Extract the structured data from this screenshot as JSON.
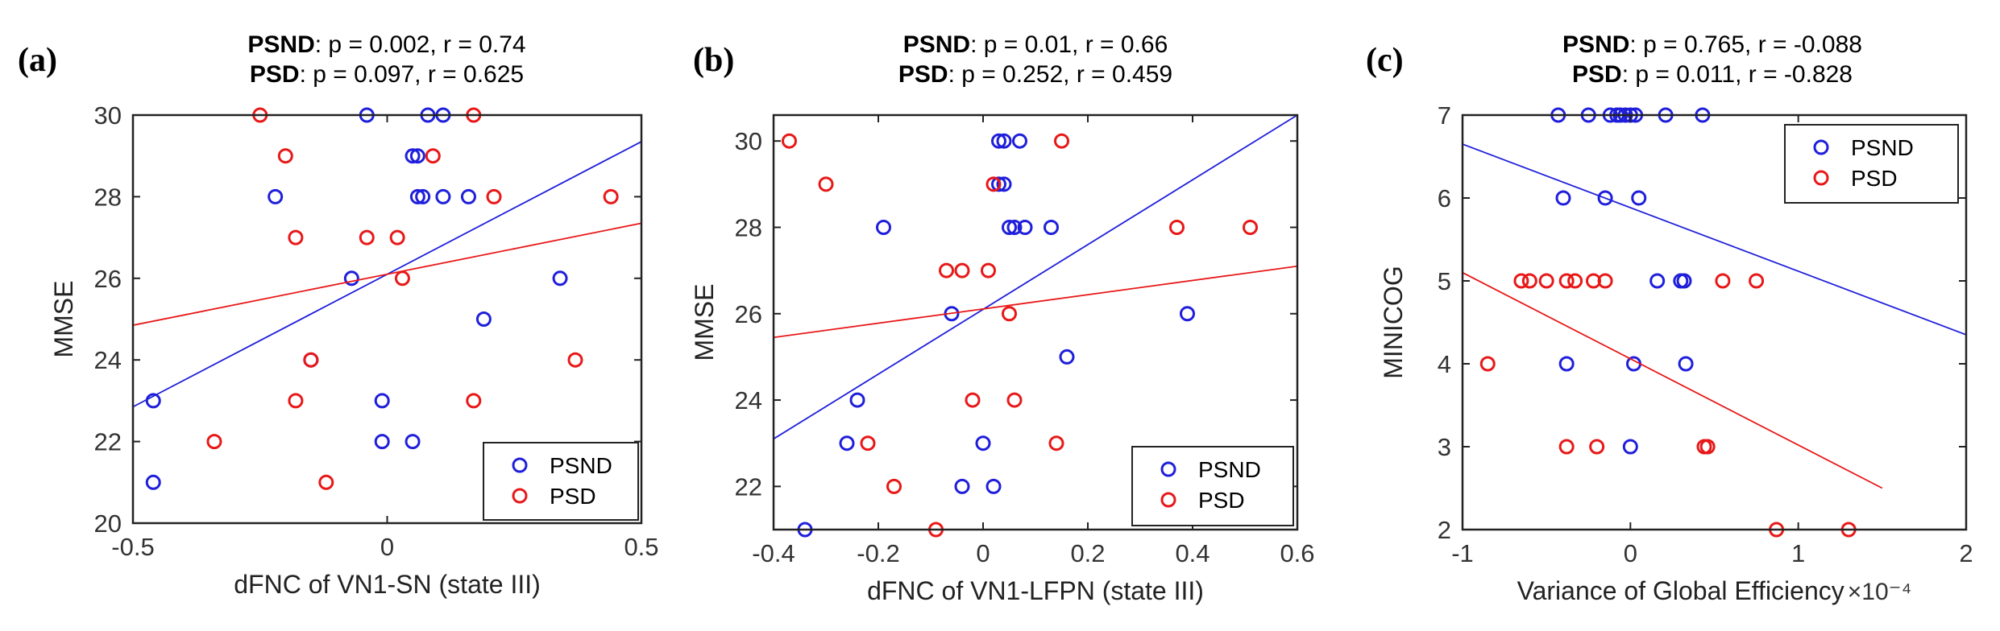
{
  "chart_data": [
    {
      "type": "scatter",
      "panel_label": "(a)",
      "stats": [
        {
          "group": "PSND",
          "text": ": p = 0.002, r = 0.74"
        },
        {
          "group": "PSD",
          "text": ": p = 0.097, r = 0.625"
        }
      ],
      "xlabel": "dFNC of VN1-SN (state III)",
      "ylabel": "MMSE",
      "xlim": [
        -0.5,
        0.5
      ],
      "ylim": [
        20,
        30
      ],
      "xticks": [
        -0.5,
        0,
        0.5
      ],
      "xtick_labels": [
        "-0.5",
        "0",
        "0.5"
      ],
      "yticks": [
        20,
        22,
        24,
        26,
        28,
        30
      ],
      "ytick_labels": [
        "20",
        "22",
        "24",
        "26",
        "28",
        "30"
      ],
      "exponent_label": "",
      "legend": {
        "position": "bottom-right",
        "entries": [
          "PSND",
          "PSD"
        ]
      },
      "series": [
        {
          "name": "PSND",
          "color": "#1f1fdb",
          "points": [
            [
              -0.46,
              23
            ],
            [
              -0.46,
              21
            ],
            [
              -0.22,
              28
            ],
            [
              -0.07,
              26
            ],
            [
              -0.04,
              30
            ],
            [
              0.08,
              30
            ],
            [
              0.11,
              30
            ],
            [
              0.05,
              29
            ],
            [
              0.06,
              29
            ],
            [
              0.06,
              28
            ],
            [
              0.07,
              28
            ],
            [
              0.11,
              28
            ],
            [
              0.16,
              28
            ],
            [
              0.19,
              25
            ],
            [
              0.34,
              26
            ],
            [
              -0.15,
              24
            ],
            [
              -0.01,
              23
            ],
            [
              -0.01,
              22
            ],
            [
              0.05,
              22
            ]
          ],
          "fit": [
            [
              -0.5,
              22.85
            ],
            [
              0.5,
              29.35
            ]
          ]
        },
        {
          "name": "PSD",
          "color": "#e81818",
          "points": [
            [
              -0.25,
              30
            ],
            [
              -0.2,
              29
            ],
            [
              -0.18,
              27
            ],
            [
              -0.15,
              24
            ],
            [
              -0.18,
              23
            ],
            [
              -0.34,
              22
            ],
            [
              -0.12,
              21
            ],
            [
              -0.04,
              27
            ],
            [
              0.02,
              27
            ],
            [
              0.03,
              26
            ],
            [
              0.09,
              29
            ],
            [
              0.17,
              30
            ],
            [
              0.21,
              28
            ],
            [
              0.17,
              23
            ],
            [
              0.37,
              24
            ],
            [
              0.44,
              28
            ]
          ],
          "fit": [
            [
              -0.5,
              24.85
            ],
            [
              0.5,
              27.35
            ]
          ]
        }
      ]
    },
    {
      "type": "scatter",
      "panel_label": "(b)",
      "stats": [
        {
          "group": "PSND",
          "text": ": p = 0.01, r = 0.66"
        },
        {
          "group": "PSD",
          "text": ": p = 0.252, r = 0.459"
        }
      ],
      "xlabel": "dFNC of VN1-LFPN (state III)",
      "ylabel": "MMSE",
      "xlim": [
        -0.4,
        0.6
      ],
      "ylim": [
        21,
        30.6
      ],
      "xticks": [
        -0.4,
        -0.2,
        0,
        0.2,
        0.4,
        0.6
      ],
      "xtick_labels": [
        "-0.4",
        "-0.2",
        "0",
        "0.2",
        "0.4",
        "0.6"
      ],
      "yticks": [
        22,
        24,
        26,
        28,
        30
      ],
      "ytick_labels": [
        "22",
        "24",
        "26",
        "28",
        "30"
      ],
      "exponent_label": "",
      "legend": {
        "position": "bottom-right",
        "entries": [
          "PSND",
          "PSD"
        ]
      },
      "series": [
        {
          "name": "PSND",
          "color": "#1f1fdb",
          "points": [
            [
              -0.34,
              21
            ],
            [
              -0.24,
              24
            ],
            [
              -0.26,
              23
            ],
            [
              -0.19,
              28
            ],
            [
              -0.06,
              26
            ],
            [
              -0.04,
              22
            ],
            [
              0.0,
              23
            ],
            [
              0.02,
              22
            ],
            [
              0.03,
              30
            ],
            [
              0.04,
              30
            ],
            [
              0.07,
              30
            ],
            [
              0.03,
              29
            ],
            [
              0.04,
              29
            ],
            [
              0.05,
              28
            ],
            [
              0.06,
              28
            ],
            [
              0.08,
              28
            ],
            [
              0.13,
              28
            ],
            [
              0.16,
              25
            ],
            [
              0.39,
              26
            ]
          ],
          "fit": [
            [
              -0.4,
              23.1
            ],
            [
              0.6,
              30.6
            ]
          ]
        },
        {
          "name": "PSD",
          "color": "#e81818",
          "points": [
            [
              -0.37,
              30
            ],
            [
              -0.3,
              29
            ],
            [
              -0.22,
              23
            ],
            [
              -0.17,
              22
            ],
            [
              -0.09,
              21
            ],
            [
              -0.07,
              27
            ],
            [
              -0.04,
              27
            ],
            [
              -0.02,
              24
            ],
            [
              0.01,
              27
            ],
            [
              0.02,
              29
            ],
            [
              0.05,
              26
            ],
            [
              0.06,
              24
            ],
            [
              0.14,
              23
            ],
            [
              0.15,
              30
            ],
            [
              0.37,
              28
            ],
            [
              0.51,
              28
            ]
          ],
          "fit": [
            [
              -0.4,
              25.45
            ],
            [
              0.6,
              27.1
            ]
          ]
        }
      ]
    },
    {
      "type": "scatter",
      "panel_label": "(c)",
      "stats": [
        {
          "group": "PSND",
          "text": ": p = 0.765, r = -0.088"
        },
        {
          "group": "PSD",
          "text": ": p = 0.011, r = -0.828"
        }
      ],
      "xlabel": "Variance of Global Efficiency",
      "ylabel": "MINICOG",
      "xlim": [
        -1,
        2
      ],
      "ylim": [
        2,
        7
      ],
      "xticks": [
        -1,
        0,
        1,
        2
      ],
      "xtick_labels": [
        "-1",
        "0",
        "1",
        "2"
      ],
      "yticks": [
        2,
        3,
        4,
        5,
        6,
        7
      ],
      "ytick_labels": [
        "2",
        "3",
        "4",
        "5",
        "6",
        "7"
      ],
      "exponent_label": "×10⁻⁴",
      "legend": {
        "position": "top-right",
        "entries": [
          "PSND",
          "PSD"
        ]
      },
      "series": [
        {
          "name": "PSND",
          "color": "#1f1fdb",
          "points": [
            [
              -0.43,
              7
            ],
            [
              -0.25,
              7
            ],
            [
              -0.12,
              7
            ],
            [
              -0.08,
              7
            ],
            [
              -0.06,
              7
            ],
            [
              -0.03,
              7
            ],
            [
              0.0,
              7
            ],
            [
              0.03,
              7
            ],
            [
              0.21,
              7
            ],
            [
              0.43,
              7
            ],
            [
              -0.4,
              6
            ],
            [
              -0.15,
              6
            ],
            [
              0.05,
              6
            ],
            [
              0.16,
              5
            ],
            [
              0.3,
              5
            ],
            [
              0.32,
              5
            ],
            [
              -0.38,
              4
            ],
            [
              0.02,
              4
            ],
            [
              0.33,
              4
            ],
            [
              0.0,
              3
            ]
          ],
          "fit": [
            [
              -1,
              6.65
            ],
            [
              2,
              4.35
            ]
          ]
        },
        {
          "name": "PSD",
          "color": "#e81818",
          "points": [
            [
              -0.85,
              4
            ],
            [
              -0.65,
              5
            ],
            [
              -0.6,
              5
            ],
            [
              -0.5,
              5
            ],
            [
              -0.38,
              5
            ],
            [
              -0.33,
              5
            ],
            [
              -0.22,
              5
            ],
            [
              -0.15,
              5
            ],
            [
              0.55,
              5
            ],
            [
              0.75,
              5
            ],
            [
              -0.38,
              3
            ],
            [
              -0.2,
              3
            ],
            [
              0.44,
              3
            ],
            [
              0.46,
              3
            ],
            [
              0.87,
              2
            ],
            [
              1.3,
              2
            ]
          ],
          "fit": [
            [
              -1,
              5.1
            ],
            [
              1.5,
              2.5
            ]
          ]
        }
      ]
    }
  ]
}
